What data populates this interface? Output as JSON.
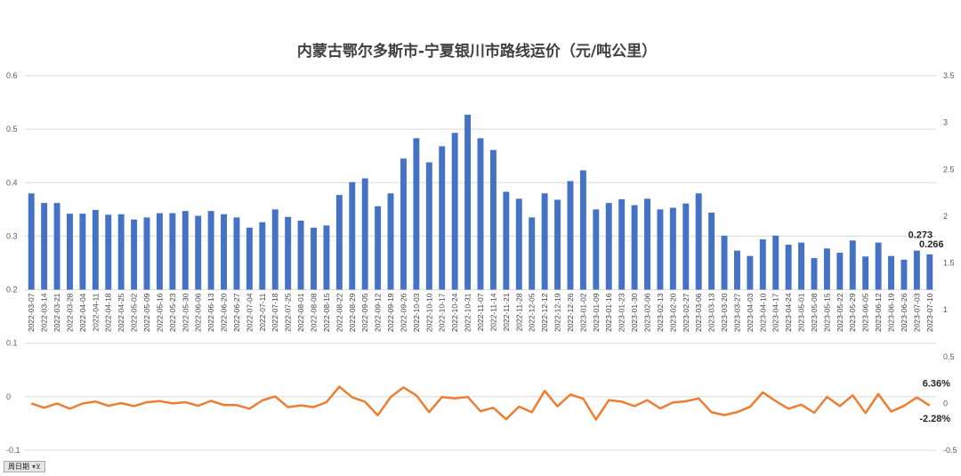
{
  "chart_data": {
    "type": "bar",
    "title": "内蒙古鄂尔多斯市-宁夏银川市路线运价（元/吨公里）",
    "categories": [
      "2022-03-07",
      "2022-03-14",
      "2022-03-21",
      "2022-03-28",
      "2022-04-04",
      "2022-04-11",
      "2022-04-18",
      "2022-04-25",
      "2022-05-02",
      "2022-05-09",
      "2022-05-16",
      "2022-05-23",
      "2022-05-30",
      "2022-06-06",
      "2022-06-13",
      "2022-06-20",
      "2022-06-27",
      "2022-07-04",
      "2022-07-11",
      "2022-07-18",
      "2022-07-25",
      "2022-08-01",
      "2022-08-08",
      "2022-08-15",
      "2022-08-22",
      "2022-08-29",
      "2022-09-05",
      "2022-09-12",
      "2022-09-19",
      "2022-09-26",
      "2022-10-03",
      "2022-10-10",
      "2022-10-17",
      "2022-10-24",
      "2022-10-31",
      "2022-11-07",
      "2022-11-14",
      "2022-11-21",
      "2022-11-28",
      "2022-12-05",
      "2022-12-12",
      "2022-12-19",
      "2022-12-26",
      "2023-01-02",
      "2023-01-09",
      "2023-01-16",
      "2023-01-23",
      "2023-01-30",
      "2023-02-06",
      "2023-02-13",
      "2023-02-20",
      "2023-02-27",
      "2023-03-06",
      "2023-03-13",
      "2023-03-20",
      "2023-03-27",
      "2023-04-03",
      "2023-04-10",
      "2023-04-17",
      "2023-04-24",
      "2023-05-01",
      "2023-05-08",
      "2023-05-15",
      "2023-05-22",
      "2023-05-29",
      "2023-06-05",
      "2023-06-12",
      "2023-06-19",
      "2023-06-26",
      "2023-07-03",
      "2023-07-10"
    ],
    "series": [
      {
        "axis": "left",
        "type": "bar",
        "color": "#4472c4",
        "values": [
          0.38,
          0.362,
          0.362,
          0.342,
          0.342,
          0.349,
          0.34,
          0.341,
          0.331,
          0.335,
          0.343,
          0.343,
          0.347,
          0.338,
          0.347,
          0.341,
          0.335,
          0.316,
          0.326,
          0.35,
          0.336,
          0.329,
          0.316,
          0.32,
          0.377,
          0.401,
          0.408,
          0.356,
          0.38,
          0.445,
          0.483,
          0.438,
          0.468,
          0.493,
          0.527,
          0.483,
          0.461,
          0.383,
          0.37,
          0.335,
          0.38,
          0.368,
          0.403,
          0.423,
          0.35,
          0.362,
          0.369,
          0.358,
          0.37,
          0.35,
          0.353,
          0.361,
          0.38,
          0.344,
          0.301,
          0.273,
          0.263,
          0.294,
          0.301,
          0.284,
          0.288,
          0.259,
          0.277,
          0.269,
          0.292,
          0.262,
          0.288,
          0.263,
          0.256,
          0.273,
          0.266
        ]
      },
      {
        "axis": "right",
        "type": "line",
        "color": "#ed7d31",
        "values": [
          0.0,
          -0.047,
          -0.001,
          -0.057,
          -0.001,
          0.02,
          -0.026,
          0.003,
          -0.029,
          0.012,
          0.024,
          0.0,
          0.012,
          -0.026,
          0.027,
          -0.017,
          -0.018,
          -0.057,
          0.032,
          0.074,
          -0.04,
          -0.021,
          -0.04,
          0.013,
          0.178,
          0.064,
          0.017,
          -0.127,
          0.067,
          0.171,
          0.085,
          -0.093,
          0.068,
          0.053,
          0.069,
          -0.084,
          -0.046,
          -0.169,
          -0.034,
          -0.095,
          0.134,
          -0.032,
          0.095,
          0.05,
          -0.173,
          0.034,
          0.019,
          -0.03,
          0.034,
          -0.054,
          0.009,
          0.023,
          0.053,
          -0.095,
          -0.125,
          -0.093,
          -0.037,
          0.118,
          0.024,
          -0.057,
          -0.014,
          -0.101,
          0.069,
          -0.029,
          0.086,
          -0.103,
          0.099,
          -0.087,
          -0.027,
          0.0636,
          -0.0228
        ]
      }
    ],
    "left_axis": {
      "ylim": [
        -0.1,
        0.6
      ],
      "ticks": [
        "0.6",
        "0.5",
        "0.4",
        "0.3",
        "0.2",
        "0.1",
        "0",
        "-0.1"
      ]
    },
    "right_axis": {
      "ylim": [
        -0.5,
        3.5
      ],
      "ticks": [
        "3.5",
        "3",
        "2.5",
        "2",
        "1.5",
        "1",
        "0.5",
        "0",
        "-0.5"
      ]
    },
    "gridlines": true,
    "legend": "none",
    "data_labels": [
      {
        "series": 0,
        "index": 69,
        "text": "0.273"
      },
      {
        "series": 0,
        "index": 70,
        "text": "0.266"
      },
      {
        "series": 1,
        "index": 69,
        "text": "6.36%"
      },
      {
        "series": 1,
        "index": 70,
        "text": "-2.28%"
      }
    ]
  },
  "filter_button": {
    "label": "周日期",
    "icon": "filter-dropdown-icon"
  }
}
